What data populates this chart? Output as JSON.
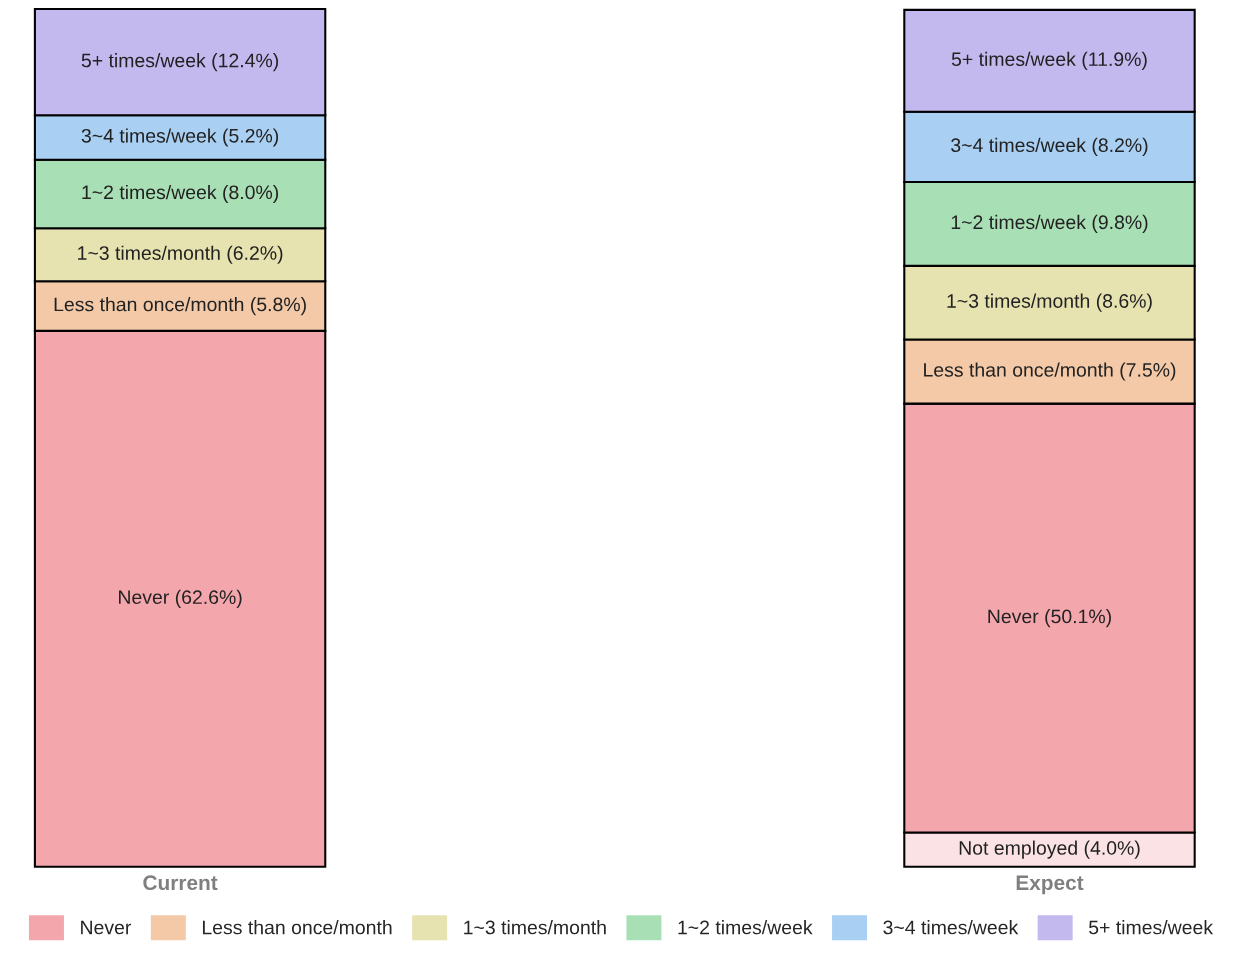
{
  "chart_data": {
    "type": "bar",
    "stacked": true,
    "categories": [
      "Current",
      "Expect"
    ],
    "tick_labels": "x",
    "legend": "bottom",
    "series": [
      {
        "color": "#fbe3e5",
        "values": [
          null,
          4.0
        ],
        "value_labels": [
          null,
          "Not employed (4.0%)"
        ]
      },
      {
        "name": "Never",
        "color": "#f4a6ad",
        "values": [
          62.6,
          50.1
        ],
        "value_labels": [
          "Never (62.6%)",
          "Never (50.1%)"
        ]
      },
      {
        "name": "Less than once/month",
        "color": "#f3c9a7",
        "values": [
          5.8,
          7.5
        ],
        "value_labels": [
          "Less than once/month (5.8%)",
          "Less than once/month (7.5%)"
        ]
      },
      {
        "name": "1~3 times/month",
        "color": "#e6e3b0",
        "values": [
          6.2,
          8.6
        ],
        "value_labels": [
          "1~3 times/month (6.2%)",
          "1~3 times/month (8.6%)"
        ]
      },
      {
        "name": "1~2 times/week",
        "color": "#a9dfb5",
        "values": [
          8.0,
          9.8
        ],
        "value_labels": [
          "1~2 times/week (8.0%)",
          "1~2 times/week (9.8%)"
        ]
      },
      {
        "name": "3~4 times/week",
        "color": "#a9d0f3",
        "values": [
          5.2,
          8.2
        ],
        "value_labels": [
          "3~4 times/week (5.2%)",
          "3~4 times/week (8.2%)"
        ]
      },
      {
        "name": "5+ times/week",
        "color": "#c4b9ef",
        "values": [
          12.4,
          11.9
        ],
        "value_labels": [
          "5+ times/week (12.4%)",
          "5+ times/week (11.9%)"
        ]
      }
    ]
  }
}
